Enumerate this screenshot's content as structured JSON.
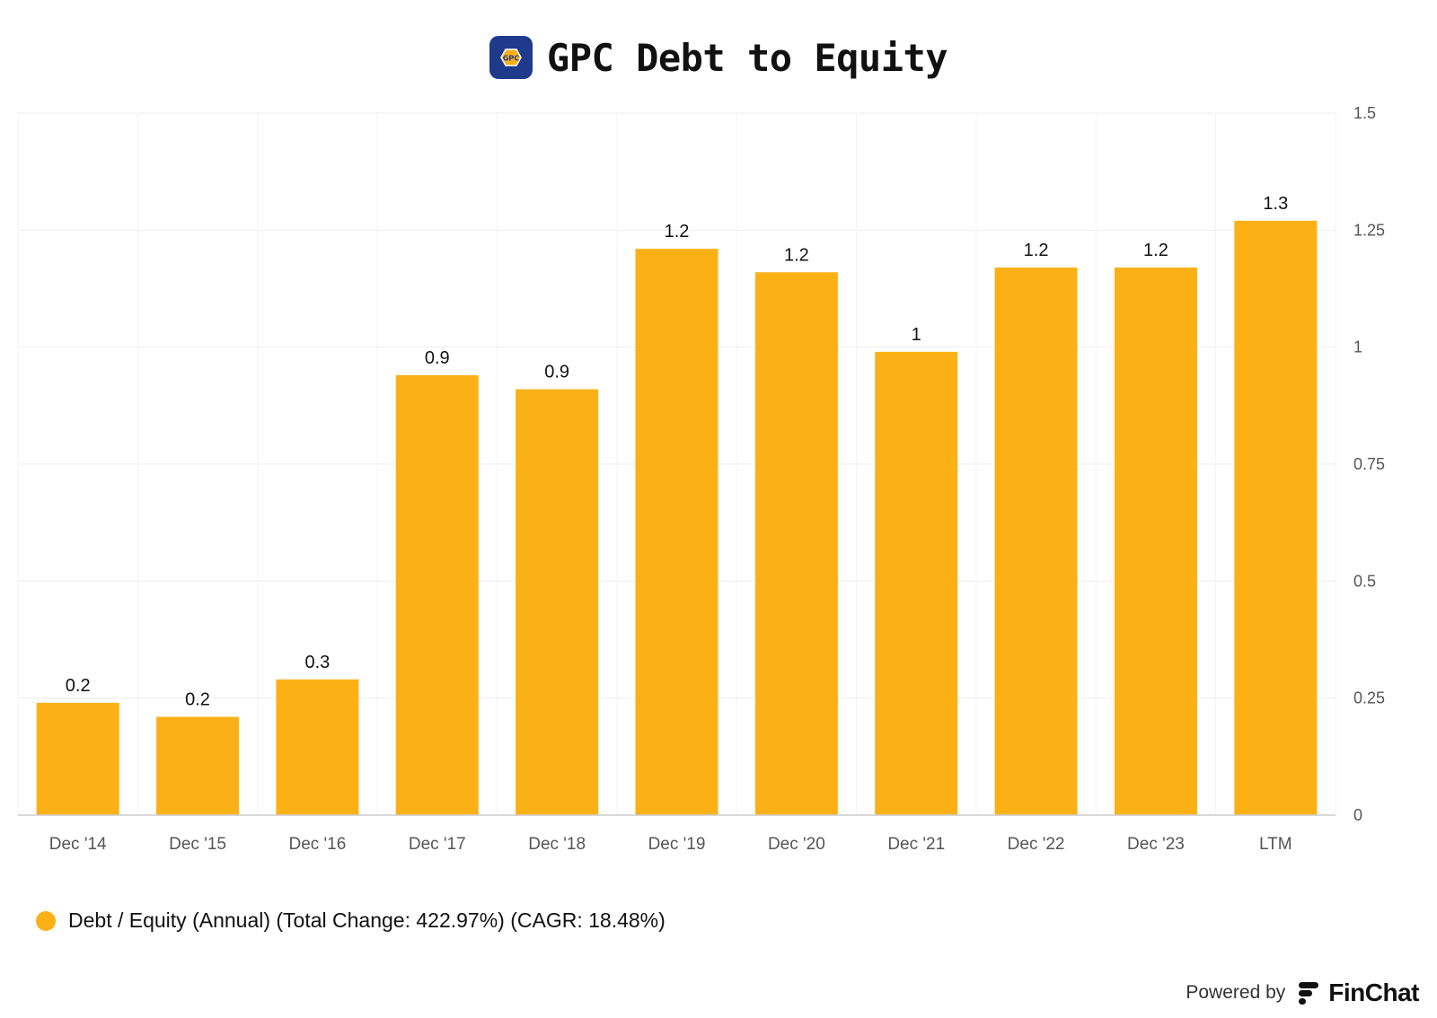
{
  "header": {
    "title": "GPC Debt to Equity",
    "logo_text": "GPC"
  },
  "colors": {
    "bar": "#fbb116",
    "logo_bg": "#1f3a8a",
    "grid": "#eeeeee"
  },
  "chart_data": {
    "type": "bar",
    "title": "GPC Debt to Equity",
    "categories": [
      "Dec '14",
      "Dec '15",
      "Dec '16",
      "Dec '17",
      "Dec '18",
      "Dec '19",
      "Dec '20",
      "Dec '21",
      "Dec '22",
      "Dec '23",
      "LTM"
    ],
    "series": [
      {
        "name": "Debt / Equity (Annual) (Total Change: 422.97%) (CAGR: 18.48%)",
        "values": [
          0.24,
          0.21,
          0.29,
          0.94,
          0.91,
          1.21,
          1.16,
          0.99,
          1.17,
          1.17,
          1.27
        ],
        "labels": [
          "0.2",
          "0.2",
          "0.3",
          "0.9",
          "0.9",
          "1.2",
          "1.2",
          "1",
          "1.2",
          "1.2",
          "1.3"
        ]
      }
    ],
    "ylim": [
      0,
      1.5
    ],
    "yticks": [
      0,
      0.25,
      0.5,
      0.75,
      1,
      1.25,
      1.5
    ],
    "ytick_labels": [
      "0",
      "0.25",
      "0.5",
      "0.75",
      "1",
      "1.25",
      "1.5"
    ],
    "y_axis_side": "right",
    "grid": true,
    "legend_position": "bottom-left"
  },
  "legend": {
    "label": "Debt / Equity (Annual) (Total Change: 422.97%) (CAGR: 18.48%)"
  },
  "footer": {
    "powered_by": "Powered by",
    "brand": "FinChat"
  }
}
